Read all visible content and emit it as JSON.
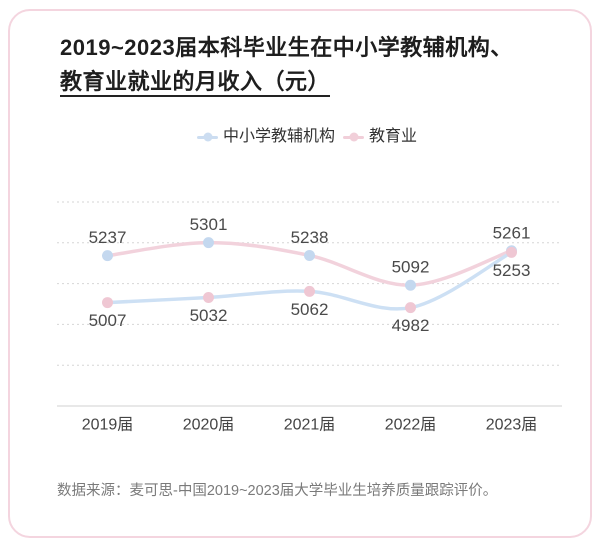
{
  "chart_data": {
    "type": "line",
    "smooth": true,
    "title": [
      "2019~2023届本科毕业生在中小学教辅机构、",
      "教育业就业的月收入（元）"
    ],
    "categories": [
      "2019届",
      "2020届",
      "2021届",
      "2022届",
      "2023届"
    ],
    "series": [
      {
        "name": "中小学教辅机构",
        "values": [
          5237,
          5301,
          5238,
          5092,
          5261
        ],
        "marker_color": "#c4d8ef",
        "line_color": "#f2d2dc",
        "label_position": "top"
      },
      {
        "name": "教育业",
        "values": [
          5007,
          5032,
          5062,
          4982,
          5253
        ],
        "marker_color": "#efc7d3",
        "line_color": "#cde0f4",
        "label_position": "bottom"
      }
    ],
    "ylim": [
      4500,
      5500
    ],
    "grid": true,
    "legend_position": "top"
  },
  "source": "数据来源：麦可思-中国2019~2023届大学毕业生培养质量跟踪评价。",
  "colors": {
    "card_border": "#f4d5df",
    "title_text": "#1e1e1e",
    "title_underline": "#222222"
  }
}
